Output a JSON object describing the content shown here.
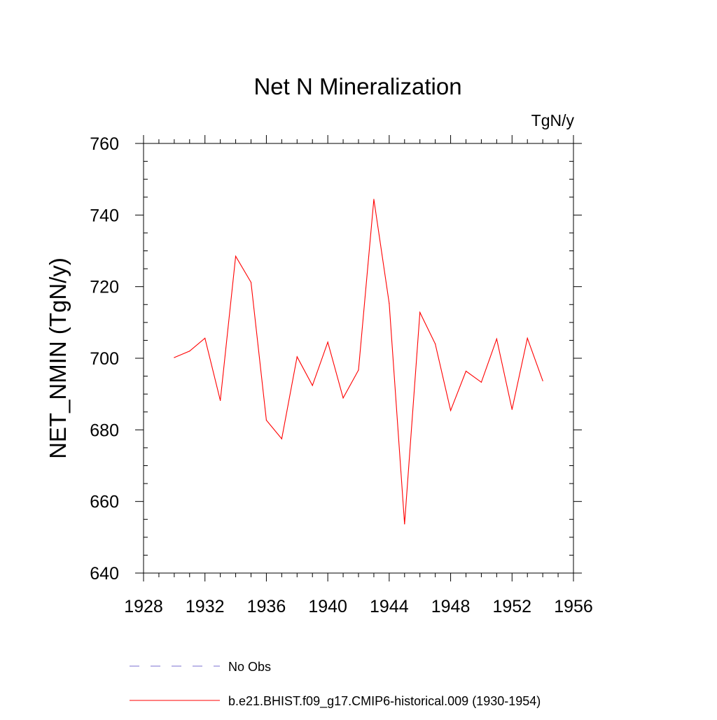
{
  "chart_data": {
    "type": "line",
    "title": "Net N Mineralization",
    "units_label": "TgN/y",
    "xlabel": "",
    "ylabel": "NET_NMIN  (TgN/y)",
    "xlim": [
      1928,
      1956
    ],
    "ylim": [
      640,
      760
    ],
    "x_ticks": [
      1928,
      1932,
      1936,
      1940,
      1944,
      1948,
      1952,
      1956
    ],
    "y_ticks": [
      640,
      660,
      680,
      700,
      720,
      740,
      760
    ],
    "grid": false,
    "legend_position": "bottom",
    "x": [
      1930,
      1931,
      1932,
      1933,
      1934,
      1935,
      1936,
      1937,
      1938,
      1939,
      1940,
      1941,
      1942,
      1943,
      1944,
      1945,
      1946,
      1947,
      1948,
      1949,
      1950,
      1951,
      1952,
      1953,
      1954
    ],
    "series": [
      {
        "name": "b.e21.BHIST.f09_g17.CMIP6-historical.009 (1930-1954)",
        "color": "#ff0000",
        "style": "solid",
        "values": [
          700.2,
          702.0,
          705.6,
          688.2,
          728.5,
          721.2,
          682.7,
          677.5,
          700.4,
          692.4,
          704.5,
          688.9,
          696.7,
          744.4,
          715.3,
          653.7,
          712.8,
          704.0,
          685.4,
          696.4,
          693.3,
          705.4,
          685.7,
          705.6,
          693.7
        ]
      }
    ],
    "legend": [
      {
        "label": "No Obs",
        "color": "#7b6fd0",
        "style": "dashed"
      },
      {
        "label": "b.e21.BHIST.f09_g17.CMIP6-historical.009 (1930-1954)",
        "color": "#ff0000",
        "style": "solid"
      }
    ]
  }
}
